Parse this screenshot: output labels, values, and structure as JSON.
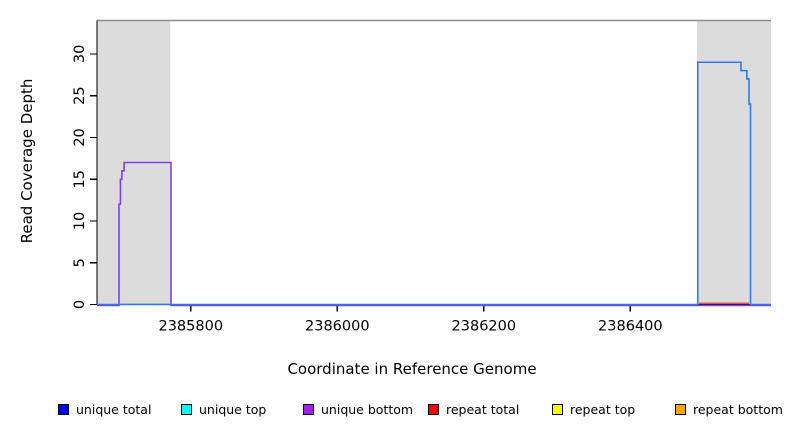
{
  "chart_data": {
    "type": "line",
    "title": "",
    "xlabel": "Coordinate in Reference Genome",
    "ylabel": "Read Coverage Depth",
    "xlim": [
      2385672,
      2386592
    ],
    "ylim": [
      0,
      34
    ],
    "x_ticks": [
      2385800,
      2386000,
      2386200,
      2386400
    ],
    "y_ticks": [
      0,
      5,
      10,
      15,
      20,
      25,
      30
    ],
    "grid": false,
    "legend_position": "bottom",
    "covered_regions": {
      "color": "#dcdcdc",
      "top_value": 34,
      "intervals": [
        [
          2385672,
          2385772
        ],
        [
          2386491,
          2386592
        ]
      ]
    },
    "ceiling_line": {
      "value": 34,
      "color": "#8e8e8e"
    },
    "series": [
      {
        "name": "unique bottom",
        "color": "#7b42e8",
        "points": [
          [
            2385672,
            0
          ],
          [
            2385702,
            0
          ],
          [
            2385702,
            12
          ],
          [
            2385704,
            12
          ],
          [
            2385704,
            15
          ],
          [
            2385706,
            15
          ],
          [
            2385706,
            16
          ],
          [
            2385709,
            16
          ],
          [
            2385709,
            17
          ],
          [
            2385773,
            17
          ],
          [
            2385773,
            0
          ],
          [
            2386592,
            0
          ]
        ]
      },
      {
        "name": "baseline green segment",
        "color": "#8ae08a",
        "points": [
          [
            2385704,
            0
          ],
          [
            2385772,
            0
          ]
        ]
      },
      {
        "name": "repeat total",
        "color": "#dd5555",
        "points": [
          [
            2386494,
            0
          ],
          [
            2386562,
            0
          ]
        ]
      },
      {
        "name": "unique total",
        "color": "#2d7af0",
        "points": [
          [
            2385672,
            0
          ],
          [
            2386492,
            0
          ],
          [
            2386492,
            29
          ],
          [
            2386551,
            29
          ],
          [
            2386551,
            28
          ],
          [
            2386559,
            28
          ],
          [
            2386559,
            27
          ],
          [
            2386562,
            27
          ],
          [
            2386562,
            24
          ],
          [
            2386564,
            24
          ],
          [
            2386564,
            0
          ],
          [
            2386592,
            0
          ]
        ]
      }
    ],
    "legend": [
      {
        "label": "unique total",
        "color": "#0000ff"
      },
      {
        "label": "unique top",
        "color": "#00ffff"
      },
      {
        "label": "unique bottom",
        "color": "#a020f0"
      },
      {
        "label": "repeat total",
        "color": "#ff0000"
      },
      {
        "label": "repeat top",
        "color": "#ffff00"
      },
      {
        "label": "repeat bottom",
        "color": "#ffa500"
      }
    ]
  }
}
